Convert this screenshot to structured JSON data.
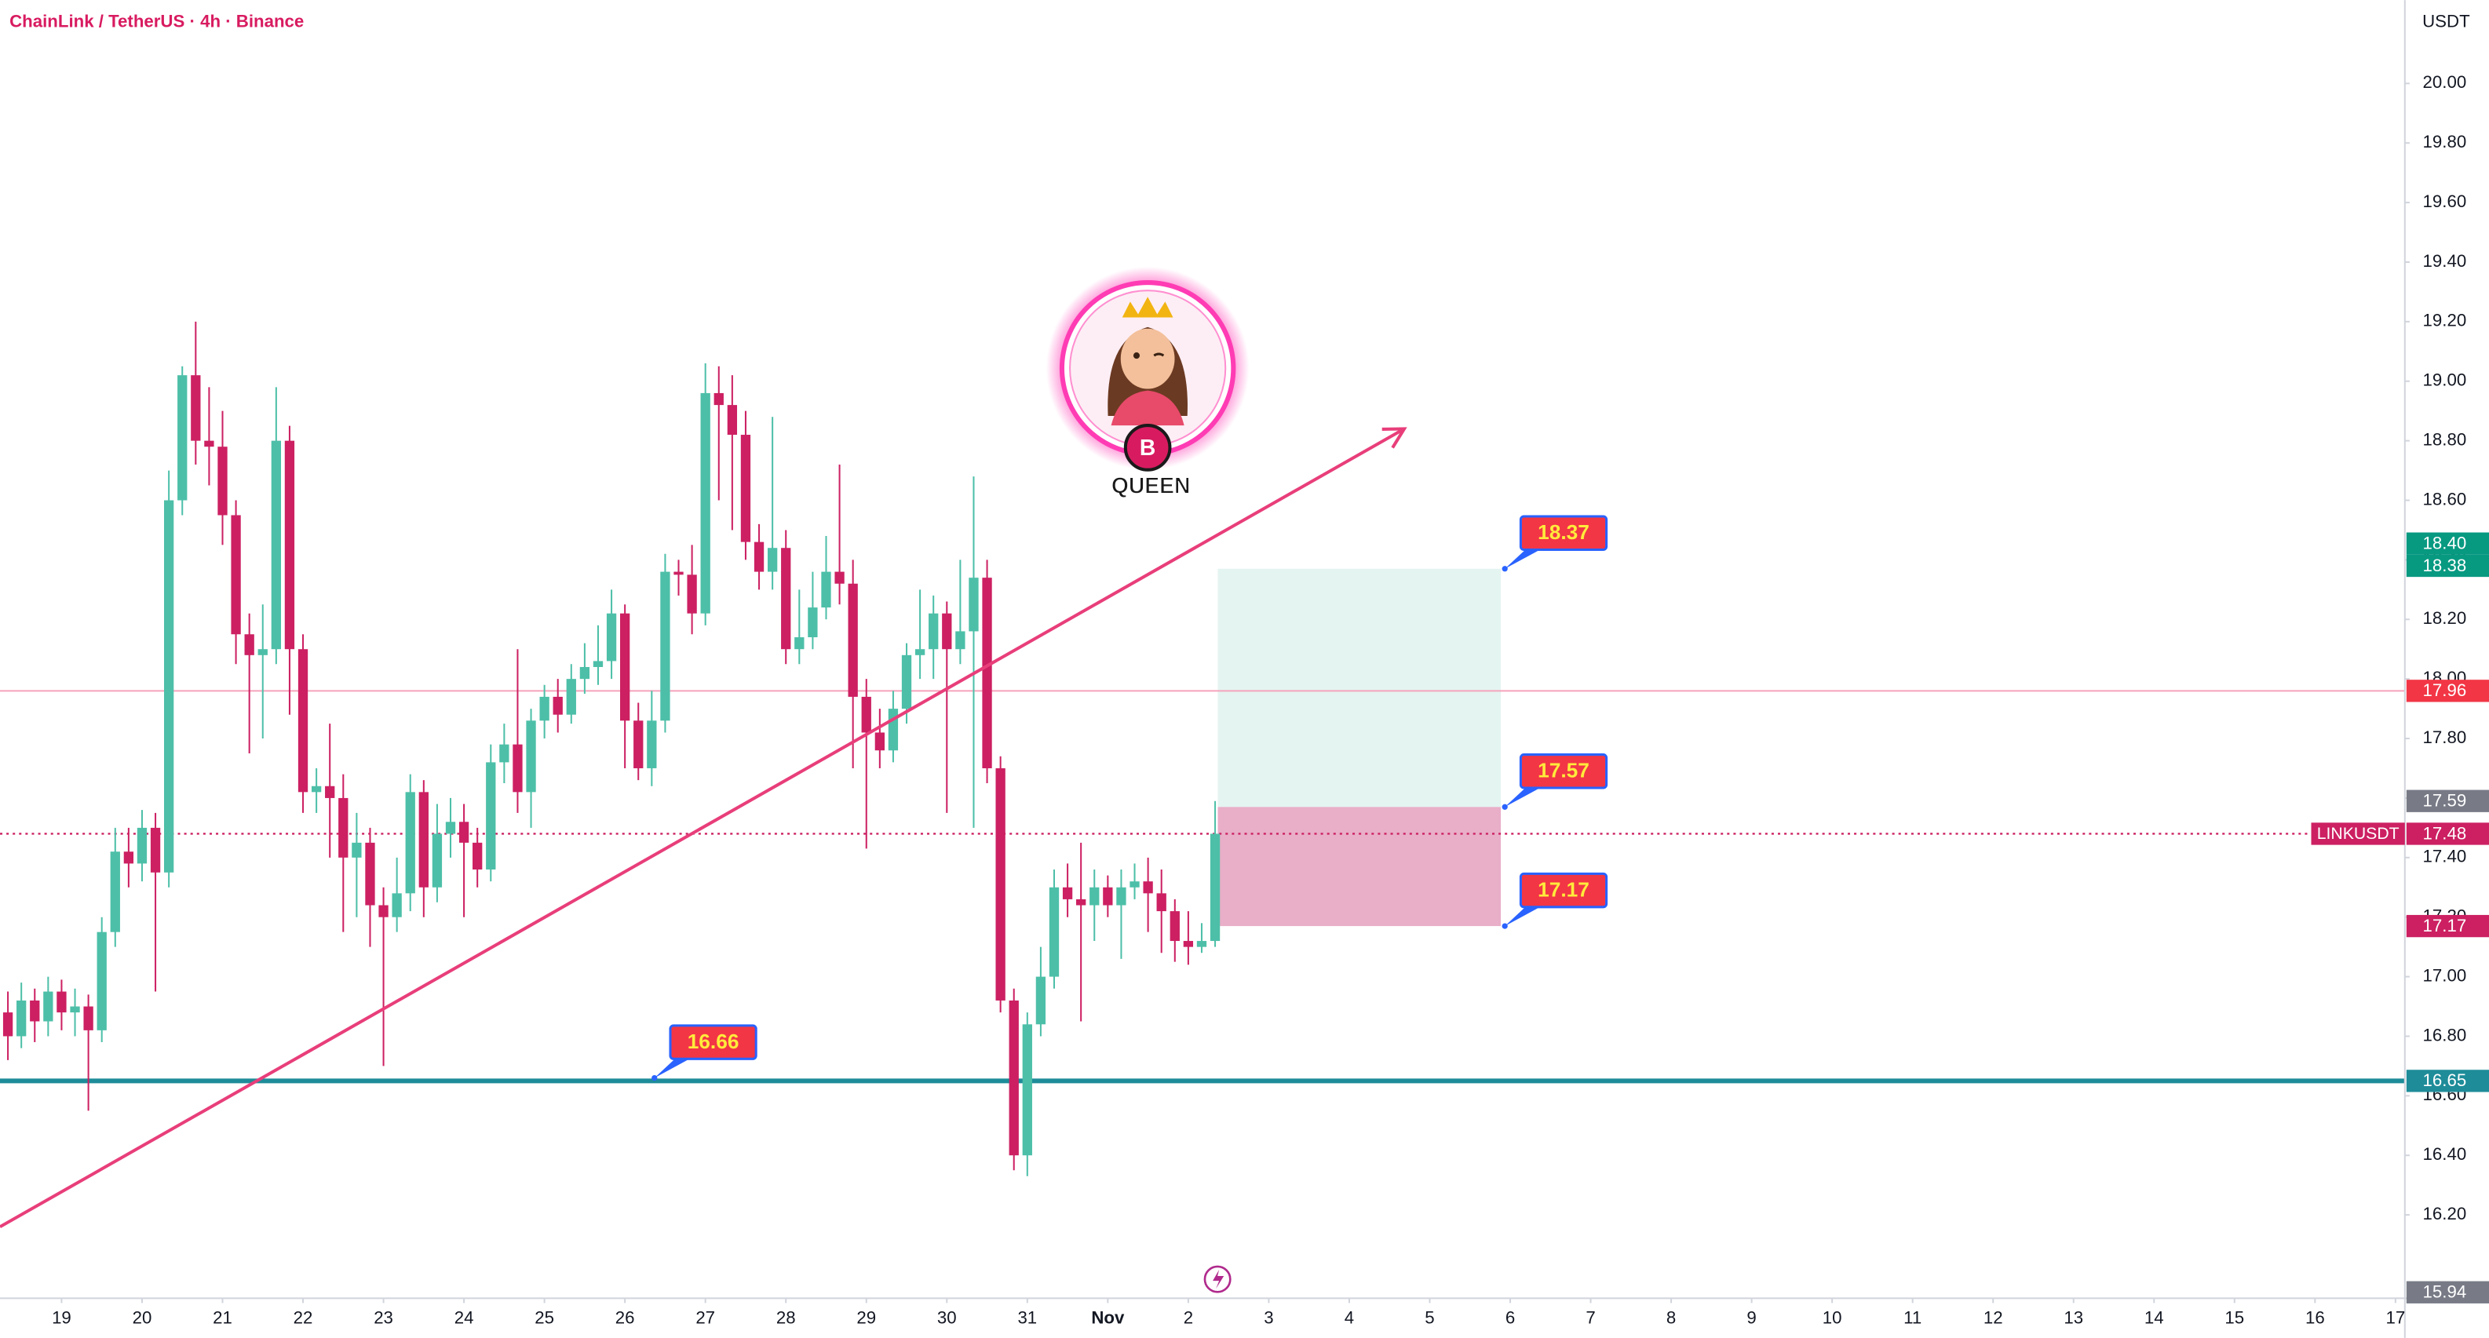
{
  "header": {
    "title": "ChainLink / TetherUS · 4h · Binance"
  },
  "watermark": {
    "text": "QUEEN"
  },
  "chart_data": {
    "type": "candlestick",
    "currency": "USDT",
    "open": [
      16.88,
      16.8,
      16.92,
      16.85,
      16.95,
      16.88,
      16.9,
      16.82,
      17.15,
      17.42,
      17.38,
      17.5,
      17.35,
      18.6,
      19.02,
      18.8,
      18.78,
      18.55,
      18.15,
      18.08,
      18.1,
      18.8,
      18.1,
      17.62,
      17.64,
      17.6,
      17.4,
      17.45,
      17.24,
      17.2,
      17.28,
      17.62,
      17.3,
      17.48,
      17.52,
      17.45,
      17.36,
      17.72,
      17.78,
      17.62,
      17.86,
      17.94,
      17.88,
      18.0,
      18.04,
      18.06,
      18.22,
      17.86,
      17.7,
      17.86,
      18.36,
      18.35,
      18.22,
      18.96,
      18.92,
      18.82,
      18.46,
      18.36,
      18.44,
      18.1,
      18.14,
      18.24,
      18.36,
      18.32,
      17.94,
      17.82,
      17.76,
      17.9,
      18.08,
      18.1,
      18.22,
      18.1,
      18.16,
      18.34,
      17.7,
      16.92,
      16.4,
      16.84,
      17.0,
      17.3,
      17.26,
      17.24,
      17.3,
      17.24,
      17.3,
      17.32,
      17.28,
      17.22,
      17.12,
      17.1,
      17.12
    ],
    "high": [
      16.95,
      16.98,
      16.96,
      17.0,
      16.99,
      16.96,
      16.94,
      17.2,
      17.5,
      17.5,
      17.56,
      17.55,
      18.7,
      19.05,
      19.2,
      18.98,
      18.9,
      18.6,
      18.22,
      18.25,
      18.98,
      18.85,
      18.15,
      17.7,
      17.85,
      17.68,
      17.55,
      17.5,
      17.3,
      17.4,
      17.68,
      17.66,
      17.58,
      17.6,
      17.58,
      17.5,
      17.78,
      17.85,
      18.1,
      17.9,
      17.98,
      18.0,
      18.05,
      18.12,
      18.18,
      18.3,
      18.25,
      17.92,
      17.96,
      18.42,
      18.4,
      18.45,
      19.06,
      19.05,
      19.02,
      18.9,
      18.52,
      18.88,
      18.5,
      18.3,
      18.36,
      18.48,
      18.72,
      18.4,
      18.0,
      17.9,
      17.96,
      18.12,
      18.3,
      18.28,
      18.26,
      18.4,
      18.68,
      18.4,
      17.74,
      16.96,
      16.88,
      17.1,
      17.36,
      17.38,
      17.45,
      17.36,
      17.34,
      17.36,
      17.38,
      17.4,
      17.36,
      17.26,
      17.22,
      17.18,
      17.59
    ],
    "low": [
      16.72,
      16.76,
      16.78,
      16.8,
      16.82,
      16.8,
      16.55,
      16.78,
      17.1,
      17.3,
      17.32,
      16.95,
      17.3,
      18.55,
      18.72,
      18.65,
      18.45,
      18.05,
      17.75,
      17.8,
      18.05,
      17.88,
      17.55,
      17.55,
      17.4,
      17.15,
      17.2,
      17.1,
      16.7,
      17.15,
      17.22,
      17.2,
      17.25,
      17.4,
      17.2,
      17.3,
      17.32,
      17.65,
      17.55,
      17.5,
      17.8,
      17.82,
      17.85,
      17.95,
      17.98,
      18.0,
      17.7,
      17.66,
      17.64,
      17.82,
      18.28,
      18.15,
      18.18,
      18.6,
      18.5,
      18.4,
      18.3,
      18.3,
      18.05,
      18.05,
      18.1,
      18.2,
      18.25,
      17.7,
      17.43,
      17.7,
      17.72,
      17.85,
      18.0,
      18.0,
      17.55,
      18.05,
      17.5,
      17.65,
      16.88,
      16.35,
      16.33,
      16.8,
      16.96,
      17.2,
      16.85,
      17.12,
      17.2,
      17.06,
      17.26,
      17.15,
      17.08,
      17.05,
      17.04,
      17.08,
      17.1
    ],
    "close": [
      16.8,
      16.92,
      16.85,
      16.95,
      16.88,
      16.9,
      16.82,
      17.15,
      17.42,
      17.38,
      17.5,
      17.35,
      18.6,
      19.02,
      18.8,
      18.78,
      18.55,
      18.15,
      18.08,
      18.1,
      18.8,
      18.1,
      17.62,
      17.64,
      17.6,
      17.4,
      17.45,
      17.24,
      17.2,
      17.28,
      17.62,
      17.3,
      17.48,
      17.52,
      17.45,
      17.36,
      17.72,
      17.78,
      17.62,
      17.86,
      17.94,
      17.88,
      18.0,
      18.04,
      18.06,
      18.22,
      17.86,
      17.7,
      17.86,
      18.36,
      18.35,
      18.22,
      18.96,
      18.92,
      18.82,
      18.46,
      18.36,
      18.44,
      18.1,
      18.14,
      18.24,
      18.36,
      18.32,
      17.94,
      17.82,
      17.76,
      17.9,
      18.08,
      18.1,
      18.22,
      18.1,
      18.16,
      18.34,
      17.7,
      16.92,
      16.4,
      16.84,
      17.0,
      17.3,
      17.26,
      17.24,
      17.3,
      17.24,
      17.3,
      17.32,
      17.28,
      17.22,
      17.12,
      17.1,
      17.12,
      17.48
    ],
    "up_color": "#4dbfa8",
    "down_color": "#cc2062",
    "xlim": [
      -0.59,
      178.7
    ],
    "ylim": [
      15.92,
      20.28
    ],
    "xticks": [
      {
        "value": 4,
        "label": "19"
      },
      {
        "value": 10,
        "label": "20"
      },
      {
        "value": 16,
        "label": "21"
      },
      {
        "value": 22,
        "label": "22"
      },
      {
        "value": 28,
        "label": "23"
      },
      {
        "value": 34,
        "label": "24"
      },
      {
        "value": 40,
        "label": "25"
      },
      {
        "value": 46,
        "label": "26"
      },
      {
        "value": 52,
        "label": "27"
      },
      {
        "value": 58,
        "label": "28"
      },
      {
        "value": 64,
        "label": "29"
      },
      {
        "value": 70,
        "label": "30"
      },
      {
        "value": 76,
        "label": "31"
      },
      {
        "value": 82,
        "label": "Nov"
      },
      {
        "value": 88,
        "label": "2"
      },
      {
        "value": 94,
        "label": "3"
      },
      {
        "value": 100,
        "label": "4"
      },
      {
        "value": 106,
        "label": "5"
      },
      {
        "value": 112,
        "label": "6"
      },
      {
        "value": 118,
        "label": "7"
      },
      {
        "value": 124,
        "label": "8"
      },
      {
        "value": 130,
        "label": "9"
      },
      {
        "value": 136,
        "label": "10"
      },
      {
        "value": 142,
        "label": "11"
      },
      {
        "value": 148,
        "label": "12"
      },
      {
        "value": 154,
        "label": "13"
      },
      {
        "value": 160,
        "label": "14"
      },
      {
        "value": 166,
        "label": "15"
      },
      {
        "value": 172,
        "label": "16"
      },
      {
        "value": 178,
        "label": "17"
      }
    ],
    "yticks": [
      {
        "value": 16.2,
        "label": "16.20"
      },
      {
        "value": 16.4,
        "label": "16.40"
      },
      {
        "value": 16.6,
        "label": "16.60"
      },
      {
        "value": 16.8,
        "label": "16.80"
      },
      {
        "value": 17,
        "label": "17.00"
      },
      {
        "value": 17.2,
        "label": "17.20"
      },
      {
        "value": 17.4,
        "label": "17.40"
      },
      {
        "value": 17.6,
        "label": "17.60"
      },
      {
        "value": 17.8,
        "label": "17.80"
      },
      {
        "value": 18,
        "label": "18.00"
      },
      {
        "value": 18.2,
        "label": "18.20"
      },
      {
        "value": 18.4,
        "label": "18.40"
      },
      {
        "value": 18.6,
        "label": "18.60"
      },
      {
        "value": 18.8,
        "label": "18.80"
      },
      {
        "value": 19,
        "label": "19.00"
      },
      {
        "value": 19.2,
        "label": "19.20"
      },
      {
        "value": 19.4,
        "label": "19.40"
      },
      {
        "value": 19.6,
        "label": "19.60"
      },
      {
        "value": 19.8,
        "label": "19.80"
      },
      {
        "value": 20,
        "label": "20.00"
      }
    ],
    "levels": [
      {
        "value": 17.96,
        "color": "#f5a3bb",
        "style": "solid"
      },
      {
        "value": 16.65,
        "color": "#1e8c99",
        "style": "thick"
      },
      {
        "value": 17.48,
        "color": "#cc2062",
        "style": "dotted"
      }
    ],
    "trendline": {
      "x": [
        -0.59,
        104.1
      ],
      "y": [
        16.16,
        18.84
      ],
      "color": "#e83e7a"
    },
    "position": {
      "x": [
        90.2,
        111.3
      ],
      "target": 18.37,
      "entry": 17.57,
      "stop": 17.17
    },
    "callouts": [
      {
        "x": 111.6,
        "value": 18.37,
        "label": "18.37"
      },
      {
        "x": 111.6,
        "value": 17.57,
        "label": "17.57"
      },
      {
        "x": 111.6,
        "value": 17.17,
        "label": "17.17"
      },
      {
        "x": 48.2,
        "value": 16.66,
        "label": "16.66"
      }
    ],
    "price_tags": [
      {
        "value": 18.38,
        "label": "18.38",
        "color": "#089981"
      },
      {
        "value": 18.4,
        "label": "18.40",
        "color": "#089981"
      },
      {
        "value": 17.96,
        "label": "17.96",
        "color": "#f23645"
      },
      {
        "value": 17.59,
        "label": "17.59",
        "color": "#787b86"
      },
      {
        "value": 17.48,
        "label": "17.48",
        "color": "#cc2062",
        "symbol": "LINKUSDT"
      },
      {
        "value": 17.17,
        "label": "17.17",
        "color": "#cc2062"
      },
      {
        "value": 16.65,
        "label": "16.65",
        "color": "#1e8c99"
      },
      {
        "value": 15.94,
        "label": "15.94",
        "color": "#787b86"
      }
    ]
  }
}
